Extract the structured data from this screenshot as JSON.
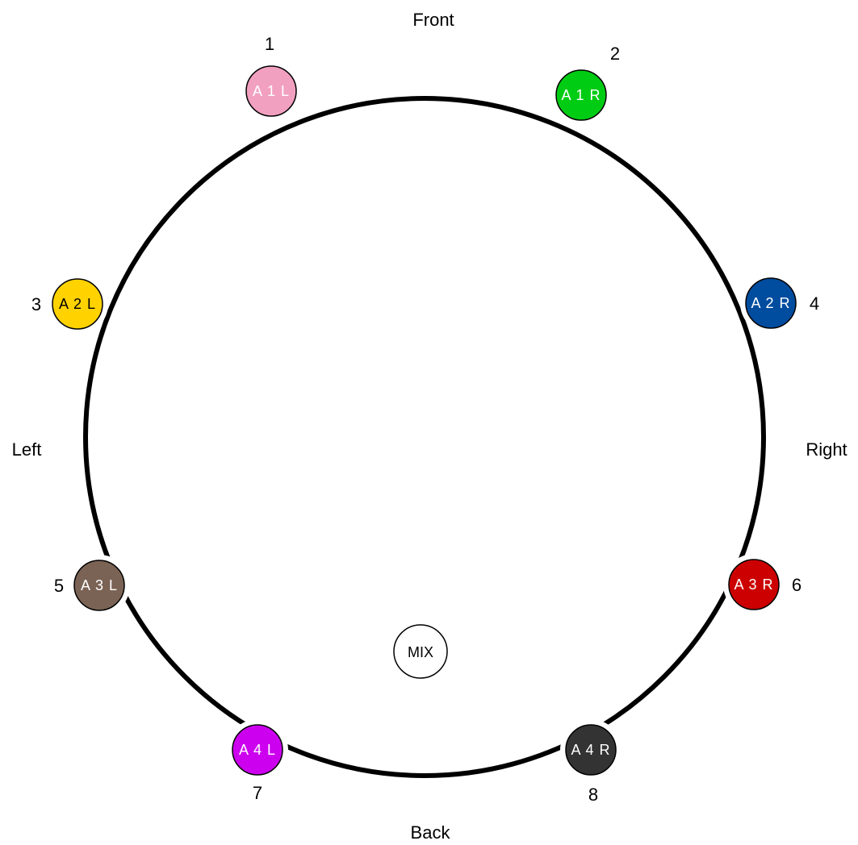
{
  "directions": {
    "front": "Front",
    "back": "Back",
    "left": "Left",
    "right": "Right"
  },
  "speakers": [
    {
      "number": "1",
      "label": "A 1 L",
      "color": "#f2a0c0",
      "text_color": "#ffffff"
    },
    {
      "number": "2",
      "label": "A 1 R",
      "color": "#00cc14",
      "text_color": "#ffffff"
    },
    {
      "number": "3",
      "label": "A 2 L",
      "color": "#ffd200",
      "text_color": "#000000"
    },
    {
      "number": "4",
      "label": "A 2 R",
      "color": "#004c9e",
      "text_color": "#ffffff"
    },
    {
      "number": "5",
      "label": "A 3 L",
      "color": "#7a6354",
      "text_color": "#ffffff"
    },
    {
      "number": "6",
      "label": "A 3 R",
      "color": "#cc0000",
      "text_color": "#ffffff"
    },
    {
      "number": "7",
      "label": "A 4 L",
      "color": "#cc00ee",
      "text_color": "#ffffff"
    },
    {
      "number": "8",
      "label": "A 4 R",
      "color": "#333333",
      "text_color": "#ffffff"
    }
  ],
  "mix": {
    "label": "MIX",
    "color": "#ffffff"
  }
}
